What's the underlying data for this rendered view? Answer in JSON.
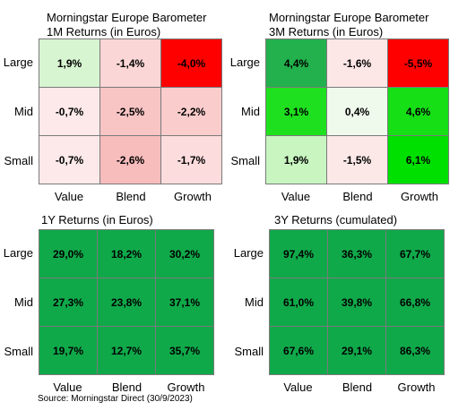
{
  "chart_data": [
    {
      "type": "heatmap",
      "title": "Morningstar Europe Barometer",
      "subtitle": "1M Returns (in Euros)",
      "rows": [
        "Large",
        "Mid",
        "Small"
      ],
      "columns": [
        "Value",
        "Blend",
        "Growth"
      ],
      "values": [
        [
          "1,9%",
          "-1,4%",
          "-4,0%"
        ],
        [
          "-0,7%",
          "-2,5%",
          "-2,2%"
        ],
        [
          "-0,7%",
          "-2,6%",
          "-1,7%"
        ]
      ],
      "colors": [
        [
          "#d6f5d0",
          "#fbd6d6",
          "#ff0000"
        ],
        [
          "#fde9e9",
          "#f9c4c4",
          "#fbcccc"
        ],
        [
          "#fde9e9",
          "#f7bcbc",
          "#fcdcdc"
        ]
      ]
    },
    {
      "type": "heatmap",
      "title": "Morningstar Europe Barometer",
      "subtitle": "3M Returns (in Euros)",
      "rows": [
        "Large",
        "Mid",
        "Small"
      ],
      "columns": [
        "Value",
        "Blend",
        "Growth"
      ],
      "values": [
        [
          "4,4%",
          "-1,6%",
          "-5,5%"
        ],
        [
          "3,1%",
          "0,4%",
          "4,6%"
        ],
        [
          "1,9%",
          "-1,5%",
          "6,1%"
        ]
      ],
      "colors": [
        [
          "#22b14c",
          "#fce6e6",
          "#ff0000"
        ],
        [
          "#1fe01f",
          "#effaec",
          "#16df16"
        ],
        [
          "#c8f5c0",
          "#fde8e8",
          "#00e000"
        ]
      ]
    },
    {
      "type": "heatmap",
      "title": "",
      "subtitle": "1Y Returns (in Euros)",
      "rows": [
        "Large",
        "Mid",
        "Small"
      ],
      "columns": [
        "Value",
        "Blend",
        "Growth"
      ],
      "values": [
        [
          "29,0%",
          "18,2%",
          "30,2%"
        ],
        [
          "27,3%",
          "23,8%",
          "37,1%"
        ],
        [
          "19,7%",
          "12,7%",
          "35,7%"
        ]
      ],
      "colors": [
        [
          "#10a94a",
          "#10a94a",
          "#10a94a"
        ],
        [
          "#10a94a",
          "#10a94a",
          "#10a94a"
        ],
        [
          "#10a94a",
          "#10a94a",
          "#10a94a"
        ]
      ]
    },
    {
      "type": "heatmap",
      "title": "",
      "subtitle": "3Y Returns (cumulated)",
      "rows": [
        "Large",
        "Mid",
        "Small"
      ],
      "columns": [
        "Value",
        "Blend",
        "Growth"
      ],
      "values": [
        [
          "97,4%",
          "36,3%",
          "67,7%"
        ],
        [
          "61,0%",
          "39,8%",
          "66,8%"
        ],
        [
          "67,6%",
          "29,1%",
          "86,3%"
        ]
      ],
      "colors": [
        [
          "#10a94a",
          "#10a94a",
          "#10a94a"
        ],
        [
          "#10a94a",
          "#10a94a",
          "#10a94a"
        ],
        [
          "#10a94a",
          "#10a94a",
          "#10a94a"
        ]
      ]
    }
  ],
  "source": "Source: Morningstar Direct (30/9/2023)"
}
